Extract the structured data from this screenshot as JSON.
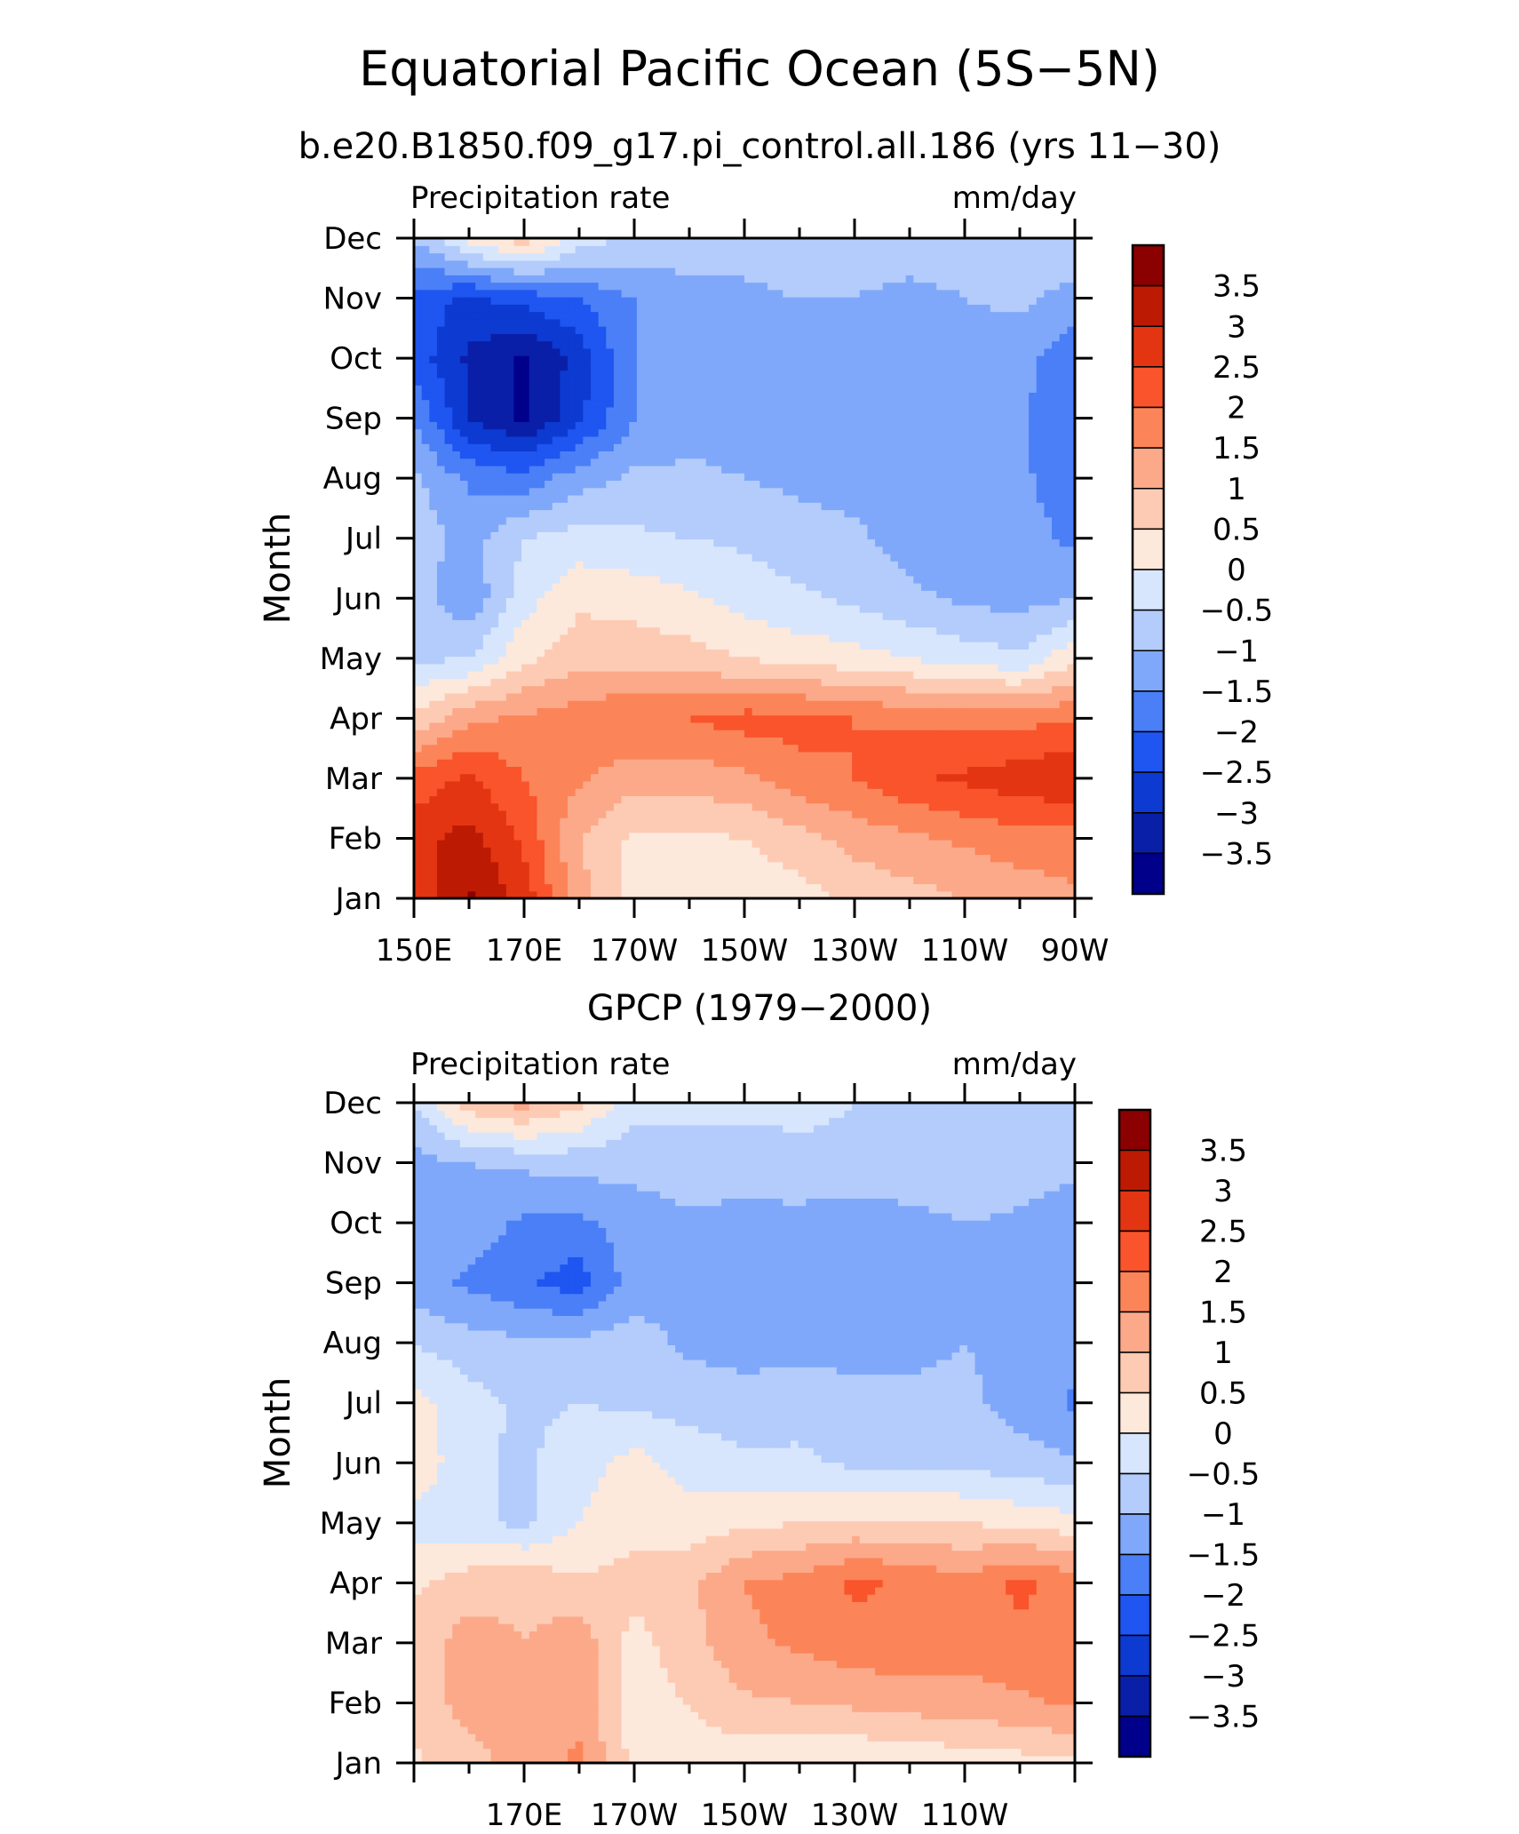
{
  "figure": {
    "title": "Equatorial Pacific Ocean (5S−5N)"
  },
  "chart_data": [
    {
      "type": "heatmap",
      "title": "b.e20.B1850.f09_g17.pi_control.all.186 (yrs 11−30)",
      "left_label": "Precipitation rate",
      "right_label": "mm/day",
      "ylabel": "Month",
      "xlabel": "",
      "x_ticks": [
        "150E",
        "170E",
        "170W",
        "150W",
        "130W",
        "110W",
        "90W"
      ],
      "y_ticks": [
        "Jan",
        "Feb",
        "Mar",
        "Apr",
        "May",
        "Jun",
        "Jul",
        "Aug",
        "Sep",
        "Oct",
        "Nov",
        "Dec"
      ],
      "x": [
        150,
        160,
        170,
        180,
        190,
        200,
        210,
        220,
        230,
        240,
        250,
        260,
        270
      ],
      "y": [
        "Jan",
        "Feb",
        "Mar",
        "Apr",
        "May",
        "Jun",
        "Jul",
        "Aug",
        "Sep",
        "Oct",
        "Nov",
        "Dec"
      ],
      "values": [
        [
          2.6,
          3.6,
          2.8,
          1.2,
          0.3,
          0.2,
          0.2,
          0.3,
          0.6,
          0.8,
          1.0,
          1.2,
          1.4
        ],
        [
          2.8,
          3.2,
          2.4,
          1.0,
          0.4,
          0.4,
          0.5,
          0.8,
          1.2,
          1.4,
          1.6,
          1.8,
          1.8
        ],
        [
          2.2,
          2.6,
          2.0,
          1.6,
          1.2,
          1.2,
          1.4,
          1.8,
          2.0,
          2.4,
          2.6,
          2.8,
          3.0
        ],
        [
          0.6,
          1.4,
          1.6,
          1.8,
          2.0,
          2.0,
          2.2,
          2.2,
          2.0,
          1.9,
          1.8,
          1.8,
          2.0
        ],
        [
          -0.6,
          -0.5,
          0.4,
          0.8,
          0.8,
          0.7,
          0.5,
          0.3,
          0.2,
          0.0,
          -0.2,
          -0.4,
          0.4
        ],
        [
          -0.8,
          -1.4,
          -0.2,
          0.4,
          0.3,
          0.1,
          -0.2,
          -0.4,
          -0.6,
          -0.9,
          -1.1,
          -1.2,
          -1.0
        ],
        [
          -0.7,
          -1.2,
          -0.5,
          -0.3,
          -0.4,
          -0.5,
          -0.6,
          -0.8,
          -0.9,
          -1.2,
          -1.2,
          -1.3,
          -1.6
        ],
        [
          -0.9,
          -1.6,
          -1.8,
          -1.2,
          -0.9,
          -0.9,
          -1.0,
          -1.1,
          -1.2,
          -1.3,
          -1.3,
          -1.4,
          -1.8
        ],
        [
          -1.5,
          -3.0,
          -3.6,
          -2.6,
          -1.5,
          -1.2,
          -1.2,
          -1.2,
          -1.2,
          -1.3,
          -1.3,
          -1.4,
          -2.0
        ],
        [
          -2.2,
          -3.1,
          -3.6,
          -2.8,
          -1.5,
          -1.2,
          -1.2,
          -1.2,
          -1.2,
          -1.2,
          -1.2,
          -1.3,
          -1.9
        ],
        [
          -2.2,
          -2.6,
          -2.3,
          -2.0,
          -1.5,
          -1.1,
          -1.1,
          -1.0,
          -1.0,
          -1.2,
          -1.0,
          -0.9,
          -1.2
        ],
        [
          -1.0,
          0.2,
          0.8,
          -0.2,
          -0.6,
          -0.8,
          -0.8,
          -0.7,
          -0.7,
          -0.6,
          -0.7,
          -0.6,
          -0.6
        ]
      ],
      "levels": [
        -4,
        -3.5,
        -3,
        -2.5,
        -2,
        -1.5,
        -1,
        -0.5,
        0,
        0.5,
        1,
        1.5,
        2,
        2.5,
        3,
        3.5,
        4
      ],
      "colors": [
        "#00008b",
        "#0a1fa8",
        "#0d3ad1",
        "#1f55f0",
        "#4a7ff7",
        "#80a8fa",
        "#b3ccfb",
        "#d7e6fd",
        "#fde8dc",
        "#fdcbb3",
        "#fca98a",
        "#fb8559",
        "#f9542b",
        "#e33512",
        "#bd1a04",
        "#8b0000"
      ],
      "colorbar_ticks": [
        "3.5",
        "3",
        "2.5",
        "2",
        "1.5",
        "1",
        "0.5",
        "0",
        "−0.5",
        "−1",
        "−1.5",
        "−2",
        "−2.5",
        "−3",
        "−3.5"
      ]
    },
    {
      "type": "heatmap",
      "title": "GPCP (1979−2000)",
      "left_label": "Precipitation rate",
      "right_label": "mm/day",
      "ylabel": "Month",
      "xlabel": "",
      "x_ticks": [
        "170E",
        "170W",
        "150W",
        "130W",
        "110W"
      ],
      "y_ticks": [
        "Jan",
        "Feb",
        "Mar",
        "Apr",
        "May",
        "Jun",
        "Jul",
        "Aug",
        "Sep",
        "Oct",
        "Nov",
        "Dec"
      ],
      "x": [
        150,
        160,
        170,
        180,
        190,
        200,
        210,
        220,
        230,
        240,
        250,
        260,
        270
      ],
      "y": [
        "Jan",
        "Feb",
        "Mar",
        "Apr",
        "May",
        "Jun",
        "Jul",
        "Aug",
        "Sep",
        "Oct",
        "Nov",
        "Dec"
      ],
      "values": [
        [
          0.4,
          0.8,
          1.2,
          1.6,
          0.3,
          0.2,
          0.2,
          0.1,
          0.0,
          0.1,
          0.2,
          0.3,
          0.4
        ],
        [
          0.7,
          1.2,
          1.4,
          1.3,
          0.3,
          0.5,
          0.9,
          1.0,
          1.1,
          1.2,
          1.3,
          1.4,
          1.6
        ],
        [
          0.8,
          1.2,
          1.0,
          1.3,
          0.3,
          0.8,
          1.4,
          1.6,
          1.8,
          1.9,
          1.7,
          1.9,
          1.9
        ],
        [
          0.4,
          0.8,
          0.9,
          0.6,
          0.7,
          0.9,
          1.5,
          1.7,
          2.1,
          1.9,
          1.7,
          2.1,
          1.8
        ],
        [
          -0.2,
          -0.4,
          -0.6,
          0.0,
          0.3,
          0.2,
          0.4,
          0.5,
          0.6,
          0.6,
          0.5,
          0.4,
          0.2
        ],
        [
          0.4,
          -0.4,
          -0.6,
          -0.2,
          0.2,
          -0.2,
          -0.4,
          -0.4,
          -0.6,
          -0.6,
          -0.6,
          -0.8,
          -0.9
        ],
        [
          0.2,
          -0.3,
          -0.6,
          -0.5,
          -0.6,
          -0.7,
          -0.8,
          -0.7,
          -0.8,
          -0.9,
          -0.9,
          -1.2,
          -1.6
        ],
        [
          -0.5,
          -0.8,
          -0.9,
          -0.8,
          -0.8,
          -1.1,
          -1.2,
          -1.2,
          -1.2,
          -1.1,
          -1.0,
          -1.1,
          -1.2
        ],
        [
          -1.3,
          -1.6,
          -1.9,
          -2.3,
          -1.2,
          -1.2,
          -1.3,
          -1.3,
          -1.4,
          -1.4,
          -1.3,
          -1.2,
          -1.2
        ],
        [
          -1.0,
          -1.2,
          -1.6,
          -1.6,
          -1.3,
          -1.1,
          -1.2,
          -1.2,
          -1.3,
          -1.2,
          -1.0,
          -1.1,
          -1.4
        ],
        [
          -1.2,
          -1.0,
          -0.9,
          -0.8,
          -0.8,
          -0.7,
          -0.7,
          -0.6,
          -0.6,
          -0.6,
          -0.6,
          -0.7,
          -0.8
        ],
        [
          -0.5,
          0.8,
          1.2,
          0.6,
          -0.3,
          -0.4,
          -0.4,
          -0.4,
          -0.5,
          -0.5,
          -0.5,
          -0.5,
          -0.5
        ]
      ],
      "levels": [
        -4,
        -3.5,
        -3,
        -2.5,
        -2,
        -1.5,
        -1,
        -0.5,
        0,
        0.5,
        1,
        1.5,
        2,
        2.5,
        3,
        3.5,
        4
      ],
      "colors": [
        "#00008b",
        "#0a1fa8",
        "#0d3ad1",
        "#1f55f0",
        "#4a7ff7",
        "#80a8fa",
        "#b3ccfb",
        "#d7e6fd",
        "#fde8dc",
        "#fdcbb3",
        "#fca98a",
        "#fb8559",
        "#f9542b",
        "#e33512",
        "#bd1a04",
        "#8b0000"
      ],
      "colorbar_ticks": [
        "3.5",
        "3",
        "2.5",
        "2",
        "1.5",
        "1",
        "0.5",
        "0",
        "−0.5",
        "−1",
        "−1.5",
        "−2",
        "−2.5",
        "−3",
        "−3.5"
      ]
    }
  ]
}
